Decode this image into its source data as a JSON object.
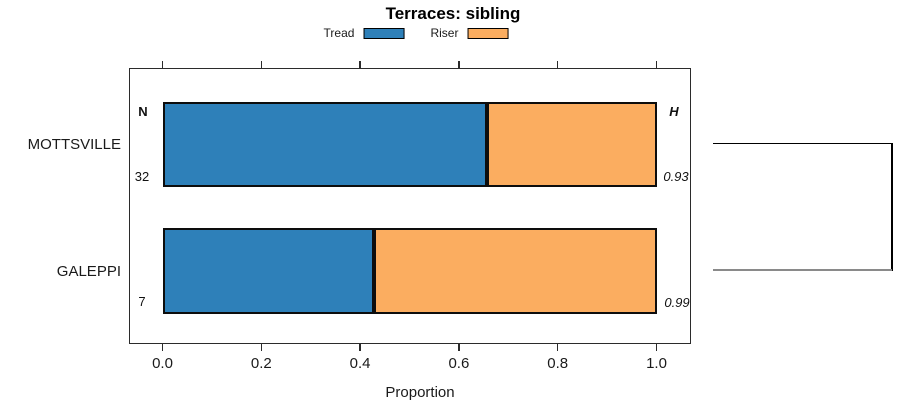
{
  "title": "Terraces: sibling",
  "legend": {
    "items": [
      {
        "label": "Tread",
        "color": "#2E80B9"
      },
      {
        "label": "Riser",
        "color": "#FBAD60"
      }
    ]
  },
  "chart_data": {
    "type": "bar",
    "orientation": "horizontal_stacked",
    "title": "Terraces: sibling",
    "xlabel": "Proportion",
    "xlim": [
      0,
      1
    ],
    "xticks": [
      "0.0",
      "0.2",
      "0.4",
      "0.6",
      "0.8",
      "1.0"
    ],
    "grid": false,
    "legend_position": "top",
    "categories": [
      "MOTTSVILLE",
      "GALEPPI"
    ],
    "series": [
      {
        "name": "Tread",
        "color": "#2E80B9",
        "values": [
          0.655,
          0.427
        ]
      },
      {
        "name": "Riser",
        "color": "#FBAD60",
        "values": [
          0.345,
          0.573
        ]
      }
    ],
    "columns": {
      "n_header": "N",
      "h_header": "H"
    },
    "rows": [
      {
        "category": "MOTTSVILLE",
        "n": "32",
        "h": "0.93",
        "tread": 0.655,
        "riser": 0.345
      },
      {
        "category": "GALEPPI",
        "n": "7",
        "h": "0.99",
        "tread": 0.427,
        "riser": 0.573
      }
    ],
    "dendrogram": {
      "joins": [
        "MOTTSVILLE",
        "GALEPPI"
      ]
    }
  }
}
